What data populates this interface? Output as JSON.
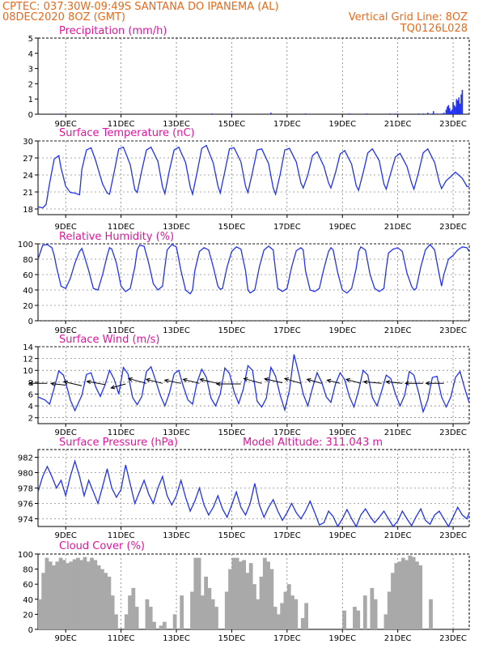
{
  "header": {
    "line1": "CPTEC:   037:30W-09:49S   SANTANA DO IPANEMA (AL)",
    "line2": "08DEC2020 8OZ (GMT)",
    "grid_line": "Vertical Grid Line: 8OZ",
    "code": "TQ0126L028"
  },
  "colors": {
    "header": "#e8691b",
    "title": "#e0149c",
    "line": "#2233ee",
    "cloud": "#a9a9a9",
    "grid": "#555555"
  },
  "chart_data": [
    {
      "type": "bar",
      "title": "Precipitation (mm/h)",
      "x_tick_labels": [
        "9DEC",
        "11DEC",
        "13DEC",
        "15DEC",
        "17DEC",
        "19DEC",
        "21DEC",
        "23DEC"
      ],
      "y_ticks": [
        0,
        1,
        2,
        3,
        4,
        5
      ],
      "ylim": [
        0,
        5
      ],
      "x_range_hours": [
        0,
        360
      ],
      "x": [
        20,
        151,
        168,
        202,
        232,
        270,
        285,
        305,
        310,
        330,
        334,
        338,
        342,
        343,
        346,
        350,
        352,
        354,
        355,
        356,
        357,
        358,
        359,
        360,
        361,
        362,
        363,
        364,
        365,
        366,
        367,
        368
      ],
      "values": [
        0.05,
        0.05,
        0.05,
        0.1,
        0.05,
        0.05,
        0.05,
        0.05,
        0.05,
        0.05,
        0.05,
        0.1,
        0.05,
        0.2,
        0.05,
        0.05,
        0.1,
        0.3,
        0.5,
        0.6,
        0.4,
        0.2,
        0.3,
        0.8,
        0.6,
        0.5,
        1.0,
        0.9,
        1.1,
        0.7,
        1.3,
        1.6
      ]
    },
    {
      "type": "line",
      "title": "Surface Temperature (nC)",
      "x_tick_labels": [
        "9DEC",
        "11DEC",
        "13DEC",
        "15DEC",
        "17DEC",
        "19DEC",
        "21DEC",
        "23DEC"
      ],
      "y_ticks": [
        18,
        21,
        24,
        27,
        30
      ],
      "ylim": [
        17,
        30
      ],
      "x_range_hours": [
        0,
        360
      ],
      "x": [
        0,
        4,
        7,
        10,
        14,
        18,
        20,
        24,
        28,
        32,
        36,
        38,
        42,
        46,
        50,
        56,
        60,
        62,
        66,
        70,
        74,
        80,
        84,
        86,
        90,
        94,
        98,
        104,
        108,
        110,
        114,
        118,
        122,
        128,
        132,
        134,
        138,
        142,
        146,
        152,
        156,
        158,
        162,
        166,
        170,
        176,
        180,
        182,
        186,
        190,
        194,
        200,
        204,
        206,
        210,
        214,
        218,
        224,
        228,
        230,
        234,
        238,
        242,
        248,
        252,
        254,
        258,
        262,
        266,
        272,
        276,
        278,
        282,
        286,
        290,
        296,
        300,
        302,
        306,
        310,
        314,
        320,
        324,
        326,
        330,
        334,
        338,
        344,
        348,
        350,
        354,
        358,
        362,
        368,
        372,
        374
      ],
      "values": [
        18.4,
        18.2,
        18.8,
        22.5,
        26.8,
        27.4,
        25.2,
        22.0,
        20.9,
        20.8,
        20.5,
        25.0,
        28.4,
        28.8,
        26.5,
        22.4,
        20.8,
        20.6,
        24.5,
        28.6,
        28.9,
        25.8,
        21.4,
        20.9,
        24.8,
        28.4,
        28.9,
        26.4,
        21.9,
        20.7,
        24.9,
        28.4,
        28.9,
        26.2,
        21.9,
        20.6,
        24.5,
        28.7,
        29.2,
        26.1,
        22.1,
        20.8,
        24.6,
        28.6,
        28.8,
        26.3,
        22.0,
        20.9,
        24.5,
        28.4,
        28.6,
        26.0,
        21.7,
        20.6,
        24.1,
        28.4,
        28.7,
        26.3,
        22.6,
        21.7,
        24.0,
        27.4,
        28.1,
        25.5,
        22.6,
        21.7,
        24.4,
        27.7,
        28.3,
        25.9,
        22.1,
        21.3,
        24.4,
        27.9,
        28.6,
        26.5,
        22.4,
        21.5,
        24.4,
        27.2,
        27.8,
        25.5,
        22.6,
        21.5,
        24.4,
        27.9,
        28.6,
        26.2,
        22.8,
        21.6,
        23.0,
        23.7,
        24.5,
        23.4,
        22.0,
        21.9
      ]
    },
    {
      "type": "line",
      "title": "Relative Humidity (%)",
      "x_tick_labels": [
        "9DEC",
        "11DEC",
        "13DEC",
        "15DEC",
        "17DEC",
        "19DEC",
        "21DEC",
        "23DEC"
      ],
      "y_ticks": [
        0,
        20,
        40,
        60,
        80,
        100
      ],
      "ylim": [
        0,
        100
      ],
      "x_range_hours": [
        0,
        360
      ],
      "x": [
        0,
        4,
        8,
        12,
        14,
        16,
        20,
        24,
        28,
        32,
        36,
        38,
        40,
        44,
        48,
        52,
        56,
        60,
        62,
        64,
        68,
        72,
        76,
        80,
        84,
        86,
        88,
        92,
        96,
        100,
        104,
        108,
        110,
        112,
        116,
        120,
        124,
        128,
        132,
        134,
        136,
        140,
        144,
        148,
        152,
        156,
        158,
        160,
        164,
        168,
        172,
        176,
        180,
        182,
        184,
        188,
        192,
        196,
        200,
        204,
        206,
        208,
        212,
        216,
        220,
        224,
        228,
        230,
        232,
        236,
        240,
        244,
        248,
        252,
        254,
        256,
        260,
        264,
        268,
        272,
        276,
        278,
        280,
        284,
        288,
        292,
        296,
        300,
        302,
        304,
        308,
        312,
        316,
        320,
        324,
        326,
        328,
        332,
        336,
        340,
        344,
        348,
        350,
        352,
        356,
        360,
        364,
        368,
        372,
        374
      ],
      "values": [
        80,
        98,
        99,
        95,
        85,
        70,
        45,
        42,
        55,
        75,
        90,
        94,
        85,
        65,
        42,
        40,
        60,
        85,
        95,
        93,
        75,
        45,
        38,
        42,
        70,
        92,
        98,
        97,
        75,
        48,
        40,
        45,
        70,
        92,
        99,
        96,
        65,
        40,
        35,
        40,
        65,
        90,
        95,
        92,
        70,
        45,
        41,
        42,
        70,
        90,
        96,
        93,
        65,
        40,
        36,
        40,
        70,
        92,
        97,
        92,
        65,
        42,
        38,
        42,
        70,
        91,
        95,
        92,
        65,
        40,
        38,
        42,
        68,
        90,
        95,
        92,
        62,
        40,
        36,
        42,
        68,
        90,
        96,
        92,
        60,
        42,
        38,
        42,
        68,
        88,
        93,
        95,
        90,
        62,
        45,
        40,
        42,
        70,
        92,
        99,
        92,
        60,
        45,
        60,
        80,
        85,
        92,
        96,
        95,
        90
      ],
      "unit_note": ""
    },
    {
      "type": "line",
      "title": "Surface Wind (m/s)",
      "x_tick_labels": [
        "9DEC",
        "11DEC",
        "13DEC",
        "15DEC",
        "17DEC",
        "19DEC",
        "21DEC",
        "23DEC"
      ],
      "y_ticks": [
        2,
        4,
        6,
        8,
        10,
        12,
        14
      ],
      "ylim": [
        1,
        14
      ],
      "x_range_hours": [
        0,
        360
      ],
      "x": [
        0,
        6,
        10,
        14,
        18,
        22,
        26,
        28,
        32,
        38,
        42,
        46,
        50,
        54,
        58,
        62,
        66,
        70,
        74,
        78,
        82,
        86,
        90,
        94,
        98,
        102,
        106,
        110,
        114,
        118,
        122,
        126,
        130,
        134,
        138,
        142,
        146,
        150,
        154,
        158,
        162,
        166,
        170,
        174,
        178,
        182,
        186,
        190,
        194,
        198,
        202,
        206,
        210,
        214,
        218,
        222,
        226,
        230,
        234,
        238,
        242,
        246,
        250,
        254,
        258,
        262,
        266,
        270,
        274,
        278,
        282,
        286,
        290,
        294,
        298,
        302,
        306,
        310,
        314,
        318,
        322,
        326,
        330,
        334,
        338,
        342,
        346,
        350,
        354,
        358,
        362,
        366,
        370,
        374
      ],
      "values": [
        5.5,
        5.0,
        4.3,
        7.0,
        9.9,
        9.2,
        6.5,
        5.0,
        3.2,
        5.8,
        9.3,
        9.6,
        7.2,
        5.6,
        7.5,
        10.0,
        8.5,
        6.0,
        10.5,
        9.4,
        5.4,
        4.2,
        5.6,
        9.8,
        10.6,
        8.3,
        5.8,
        4.0,
        6.2,
        9.4,
        10.0,
        7.3,
        5.0,
        4.3,
        8.0,
        10.2,
        8.8,
        5.3,
        4.0,
        6.0,
        10.4,
        9.5,
        6.4,
        4.4,
        6.8,
        10.8,
        10.0,
        4.8,
        3.8,
        5.3,
        10.5,
        9.0,
        5.8,
        3.3,
        6.6,
        12.7,
        9.5,
        6.0,
        4.0,
        7.0,
        9.6,
        8.0,
        5.5,
        4.6,
        7.7,
        9.6,
        8.4,
        5.6,
        3.8,
        6.6,
        10.0,
        9.2,
        5.4,
        4.0,
        6.5,
        9.2,
        8.6,
        6.0,
        4.0,
        5.8,
        9.8,
        9.2,
        6.3,
        3.0,
        5.0,
        8.8,
        9.0,
        5.5,
        3.8,
        5.5,
        8.8,
        9.8,
        7.0,
        4.5
      ],
      "arrows": [
        {
          "x": 8,
          "y": 7.8,
          "dx": -22,
          "dy": 0
        },
        {
          "x": 24,
          "y": 7.5,
          "dx": -18,
          "dy": -2
        },
        {
          "x": 38,
          "y": 7.4,
          "dx": -22,
          "dy": -5
        },
        {
          "x": 58,
          "y": 7.6,
          "dx": -22,
          "dy": -4
        },
        {
          "x": 76,
          "y": 7.7,
          "dx": -18,
          "dy": 5
        },
        {
          "x": 94,
          "y": 7.8,
          "dx": -22,
          "dy": -6
        },
        {
          "x": 108,
          "y": 7.8,
          "dx": -20,
          "dy": -5
        },
        {
          "x": 124,
          "y": 7.8,
          "dx": -20,
          "dy": -4
        },
        {
          "x": 140,
          "y": 7.8,
          "dx": -20,
          "dy": -5
        },
        {
          "x": 156,
          "y": 7.8,
          "dx": -22,
          "dy": -5
        },
        {
          "x": 176,
          "y": 7.7,
          "dx": -30,
          "dy": 0
        },
        {
          "x": 194,
          "y": 7.8,
          "dx": -22,
          "dy": -6
        },
        {
          "x": 212,
          "y": 7.9,
          "dx": -22,
          "dy": -5
        },
        {
          "x": 228,
          "y": 7.8,
          "dx": -20,
          "dy": -6
        },
        {
          "x": 246,
          "y": 7.8,
          "dx": -18,
          "dy": -5
        },
        {
          "x": 262,
          "y": 7.8,
          "dx": -16,
          "dy": -4
        },
        {
          "x": 280,
          "y": 7.8,
          "dx": -18,
          "dy": -5
        },
        {
          "x": 298,
          "y": 7.8,
          "dx": -22,
          "dy": -2
        },
        {
          "x": 316,
          "y": 7.8,
          "dx": -20,
          "dy": -2
        },
        {
          "x": 334,
          "y": 7.8,
          "dx": -22,
          "dy": 0
        },
        {
          "x": 352,
          "y": 7.8,
          "dx": -22,
          "dy": 0
        }
      ]
    },
    {
      "type": "line",
      "title": "Surface Pressure (hPa)",
      "annotation": "Model Altitude: 311.043 m",
      "x_tick_labels": [
        "9DEC",
        "11DEC",
        "13DEC",
        "15DEC",
        "17DEC",
        "19DEC",
        "21DEC",
        "23DEC"
      ],
      "y_ticks": [
        974,
        976,
        978,
        980,
        982
      ],
      "ylim": [
        973,
        983
      ],
      "x_range_hours": [
        0,
        360
      ],
      "x": [
        0,
        4,
        8,
        12,
        16,
        20,
        24,
        28,
        32,
        36,
        40,
        44,
        48,
        52,
        56,
        60,
        64,
        68,
        72,
        76,
        80,
        84,
        88,
        92,
        96,
        100,
        104,
        108,
        112,
        116,
        120,
        124,
        128,
        132,
        136,
        140,
        144,
        148,
        152,
        156,
        160,
        164,
        168,
        172,
        176,
        180,
        184,
        188,
        192,
        196,
        200,
        204,
        208,
        212,
        216,
        220,
        224,
        228,
        232,
        236,
        240,
        244,
        248,
        252,
        256,
        260,
        264,
        268,
        272,
        276,
        280,
        284,
        288,
        292,
        296,
        300,
        304,
        308,
        312,
        316,
        320,
        324,
        328,
        332,
        336,
        340,
        344,
        348,
        352,
        356,
        360,
        364,
        368,
        372,
        374
      ],
      "values": [
        977.5,
        979.5,
        980.8,
        979.5,
        978.0,
        979.0,
        977.0,
        979.5,
        981.5,
        979.5,
        977.0,
        979.0,
        977.5,
        976.0,
        978.2,
        980.5,
        978.0,
        976.8,
        977.8,
        981.0,
        978.5,
        976.0,
        977.5,
        979.0,
        977.2,
        976.0,
        978.0,
        979.5,
        977.0,
        975.8,
        977.0,
        979.0,
        976.8,
        975.0,
        976.3,
        978.0,
        975.8,
        974.5,
        975.5,
        977.0,
        975.3,
        974.2,
        975.8,
        977.5,
        975.5,
        974.5,
        976.0,
        978.6,
        975.8,
        974.2,
        975.5,
        976.5,
        975.0,
        973.8,
        974.8,
        976.0,
        974.8,
        974.0,
        975.0,
        976.3,
        974.8,
        973.2,
        973.5,
        975.0,
        974.3,
        973.0,
        974.0,
        975.2,
        974.0,
        973.0,
        974.5,
        975.3,
        974.3,
        973.5,
        974.2,
        975.0,
        974.0,
        973.0,
        973.7,
        975.0,
        974.0,
        973.1,
        974.3,
        975.3,
        973.8,
        973.3,
        974.5,
        975.0,
        974.0,
        973.0,
        974.2,
        975.5,
        974.5,
        974.0,
        974.8
      ]
    },
    {
      "type": "bar",
      "title": "Cloud Cover (%)",
      "x_tick_labels": [
        "9DEC",
        "11DEC",
        "13DEC",
        "15DEC",
        "17DEC",
        "19DEC",
        "21DEC",
        "23DEC"
      ],
      "y_ticks": [
        0,
        20,
        40,
        60,
        80,
        100
      ],
      "ylim": [
        0,
        100
      ],
      "x_range_hours": [
        0,
        360
      ],
      "x": [
        0,
        3,
        6,
        9,
        12,
        15,
        18,
        21,
        24,
        27,
        30,
        33,
        36,
        39,
        42,
        45,
        48,
        51,
        54,
        57,
        60,
        63,
        66,
        69,
        72,
        75,
        78,
        81,
        84,
        87,
        90,
        93,
        96,
        99,
        102,
        105,
        108,
        111,
        114,
        117,
        120,
        123,
        126,
        129,
        132,
        135,
        138,
        141,
        144,
        147,
        150,
        153,
        156,
        159,
        162,
        165,
        168,
        171,
        174,
        177,
        180,
        183,
        186,
        189,
        192,
        195,
        198,
        201,
        204,
        207,
        210,
        213,
        216,
        219,
        222,
        225,
        228,
        231,
        234,
        237,
        240,
        243,
        246,
        249,
        252,
        255,
        258,
        261,
        264,
        267,
        270,
        273,
        276,
        279,
        282,
        285,
        288,
        291,
        294,
        297,
        300,
        303,
        306,
        309,
        312,
        315,
        318,
        321,
        324,
        327,
        330,
        333,
        336,
        339,
        342,
        345,
        348,
        351,
        354,
        357,
        360,
        363,
        366,
        369,
        372
      ],
      "values": [
        40,
        75,
        95,
        90,
        85,
        90,
        95,
        92,
        88,
        90,
        93,
        95,
        92,
        96,
        90,
        95,
        92,
        85,
        80,
        75,
        70,
        45,
        20,
        0,
        0,
        20,
        45,
        55,
        30,
        0,
        0,
        40,
        30,
        10,
        0,
        5,
        10,
        0,
        0,
        20,
        0,
        45,
        0,
        0,
        50,
        95,
        95,
        45,
        70,
        55,
        40,
        30,
        0,
        0,
        50,
        80,
        95,
        95,
        90,
        92,
        75,
        88,
        60,
        40,
        70,
        95,
        90,
        80,
        30,
        20,
        35,
        50,
        60,
        45,
        40,
        0,
        15,
        35,
        0,
        0,
        0,
        0,
        0,
        0,
        0,
        0,
        0,
        0,
        25,
        0,
        0,
        30,
        25,
        0,
        45,
        0,
        55,
        40,
        0,
        0,
        20,
        50,
        75,
        88,
        90,
        95,
        92,
        98,
        96,
        90,
        85,
        0,
        0,
        40,
        0,
        0,
        0,
        0,
        0,
        0,
        0,
        0,
        0,
        0,
        0
      ]
    }
  ]
}
